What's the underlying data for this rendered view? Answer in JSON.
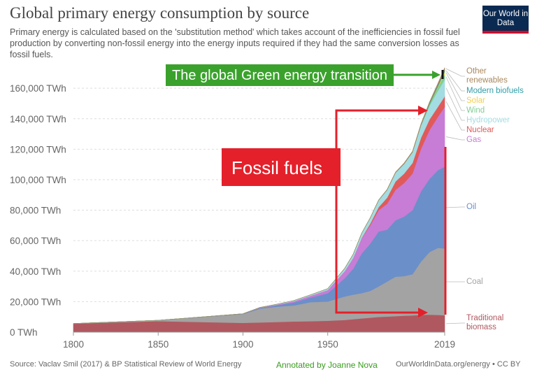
{
  "chart_data": {
    "type": "stacked_area",
    "title": "Global primary energy consumption by source",
    "subtitle": "Primary energy is calculated based on the 'substitution method' which takes account of the inefficiencies in fossil fuel production by converting non-fossil energy into the energy inputs required if they had the same conversion losses as fossil fuels.",
    "logo": "Our World in Data",
    "source": "Source: Vaclav Smil (2017) & BP Statistical Review of World Energy",
    "annotated_by": "Annotated by Joanne Nova",
    "url": "OurWorldInData.org/energy • CC BY",
    "annotations": {
      "green": "The global Green energy transition",
      "fossil": "Fossil fuels"
    },
    "x": [
      1800,
      1850,
      1900,
      1910,
      1920,
      1930,
      1940,
      1950,
      1960,
      1965,
      1970,
      1975,
      1980,
      1985,
      1990,
      1995,
      2000,
      2005,
      2010,
      2015,
      2019
    ],
    "xlim": [
      1800,
      2019
    ],
    "xticks": [
      1800,
      1850,
      1900,
      1950,
      2019
    ],
    "ylim": [
      0,
      172000
    ],
    "yticks": [
      {
        "value": 0,
        "label": "0 TWh"
      },
      {
        "value": 20000,
        "label": "20,000 TWh"
      },
      {
        "value": 40000,
        "label": "40,000 TWh"
      },
      {
        "value": 60000,
        "label": "60,000 TWh"
      },
      {
        "value": 80000,
        "label": "80,000 TWh"
      },
      {
        "value": 100000,
        "label": "100,000 TWh"
      },
      {
        "value": 120000,
        "label": "120,000 TWh"
      },
      {
        "value": 140000,
        "label": "140,000 TWh"
      },
      {
        "value": 160000,
        "label": "160,000 TWh"
      }
    ],
    "grid": true,
    "series": [
      {
        "name": "Traditional biomass",
        "color": "#b0585f",
        "values": [
          5556,
          7222,
          6111,
          6400,
          6700,
          7000,
          7200,
          7500,
          8000,
          8500,
          9000,
          9500,
          10000,
          10200,
          10500,
          10800,
          11000,
          11300,
          11500,
          11300,
          11111
        ]
      },
      {
        "name": "Coal",
        "color": "#a3a3a3",
        "values": [
          97,
          569,
          5728,
          9000,
          10000,
          10500,
          12500,
          12600,
          15400,
          16100,
          16600,
          17500,
          20000,
          23000,
          25900,
          26000,
          27000,
          35000,
          41000,
          44000,
          43800
        ]
      },
      {
        "name": "Oil",
        "color": "#6b8fc9",
        "values": [
          0,
          0,
          181,
          500,
          1000,
          2000,
          3000,
          5444,
          12000,
          17000,
          26000,
          31000,
          36000,
          34000,
          37000,
          39000,
          42000,
          46000,
          48000,
          51000,
          53600
        ]
      },
      {
        "name": "Gas",
        "color": "#c77cd6",
        "values": [
          0,
          0,
          64,
          200,
          400,
          800,
          1200,
          2092,
          4600,
          7000,
          10000,
          12000,
          14000,
          17000,
          20000,
          22000,
          24000,
          28000,
          32000,
          35000,
          39300
        ]
      },
      {
        "name": "Nuclear",
        "color": "#e05a5a",
        "values": [
          0,
          0,
          0,
          0,
          0,
          0,
          0,
          0,
          10,
          70,
          230,
          1100,
          2000,
          4000,
          5500,
          6200,
          7000,
          7200,
          7000,
          6600,
          6900
        ]
      },
      {
        "name": "Hydropower",
        "color": "#a3dce2",
        "values": [
          0,
          0,
          0,
          100,
          250,
          450,
          650,
          900,
          1800,
          2400,
          3000,
          3700,
          4500,
          5100,
          5700,
          6300,
          7000,
          8000,
          9000,
          10500,
          11000
        ]
      },
      {
        "name": "Wind",
        "color": "#7fcf93",
        "values": [
          0,
          0,
          0,
          0,
          0,
          0,
          0,
          0,
          0,
          0,
          0,
          0,
          0,
          0,
          10,
          20,
          80,
          270,
          900,
          2200,
          3500
        ]
      },
      {
        "name": "Solar",
        "color": "#f2d14b",
        "values": [
          0,
          0,
          0,
          0,
          0,
          0,
          0,
          0,
          0,
          0,
          0,
          0,
          0,
          0,
          0,
          0,
          5,
          20,
          80,
          650,
          1800
        ]
      },
      {
        "name": "Modern biofuels",
        "color": "#2e9ea8",
        "values": [
          0,
          0,
          0,
          0,
          0,
          0,
          0,
          0,
          0,
          0,
          0,
          0,
          20,
          50,
          80,
          90,
          100,
          200,
          600,
          900,
          1100
        ]
      },
      {
        "name": "Other renewables",
        "color": "#a8875e",
        "values": [
          0,
          0,
          0,
          0,
          0,
          0,
          0,
          0,
          20,
          40,
          60,
          100,
          150,
          250,
          350,
          420,
          500,
          650,
          800,
          1100,
          1400
        ]
      }
    ]
  }
}
